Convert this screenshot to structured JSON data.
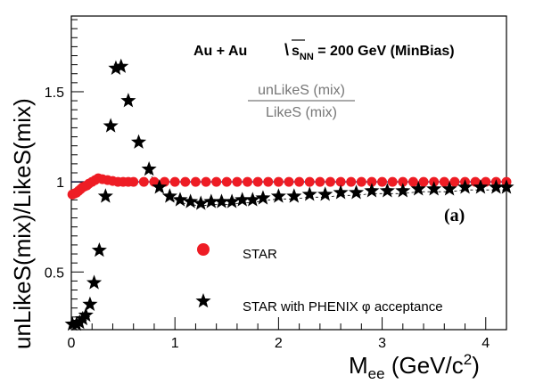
{
  "chart_data": {
    "type": "scatter",
    "title": "Au + Au",
    "energy_label": "s",
    "energy_sub": "NN",
    "energy_value": " = 200 GeV (MinBias)",
    "ratio_numerator": "unLikeS (mix)",
    "ratio_denominator": "LikeS (mix)",
    "panel_label": "(a)",
    "xlabel": "M",
    "xlabel_sub": "ee",
    "xlabel_unit": " (GeV/c",
    "xlabel_sup": "2",
    "xlabel_close": ")",
    "ylabel": "unLikeS(mix)/LikeS(mix)",
    "xlim": [
      0,
      4.2
    ],
    "ylim": [
      0.18,
      1.92
    ],
    "x_ticks": [
      0,
      1,
      2,
      3,
      4
    ],
    "x_tick_labels": [
      "0",
      "1",
      "2",
      "3",
      "4"
    ],
    "y_ticks": [
      0.5,
      1,
      1.5
    ],
    "y_tick_labels": [
      "0.5",
      "1",
      "1.5"
    ],
    "reference_line": 1.0,
    "legend_position": "bottom-center",
    "series": [
      {
        "name": "STAR",
        "marker": "circle",
        "color": "#ee1c24",
        "x": [
          0.01,
          0.03,
          0.05,
          0.07,
          0.09,
          0.11,
          0.13,
          0.15,
          0.17,
          0.2,
          0.23,
          0.26,
          0.3,
          0.35,
          0.4,
          0.45,
          0.5,
          0.55,
          0.6,
          0.7,
          0.8,
          0.9,
          1.0,
          1.1,
          1.2,
          1.3,
          1.4,
          1.5,
          1.6,
          1.7,
          1.8,
          1.9,
          2.0,
          2.1,
          2.2,
          2.3,
          2.4,
          2.5,
          2.6,
          2.7,
          2.8,
          2.9,
          3.0,
          3.1,
          3.2,
          3.3,
          3.4,
          3.5,
          3.6,
          3.7,
          3.8,
          3.9,
          4.0,
          4.1,
          4.2
        ],
        "y": [
          0.93,
          0.935,
          0.94,
          0.95,
          0.96,
          0.97,
          0.975,
          0.98,
          0.99,
          1.0,
          1.01,
          1.02,
          1.015,
          1.01,
          1.005,
          1.0,
          1.0,
          1.0,
          1.0,
          1.0,
          1.0,
          1.0,
          1.0,
          1.0,
          1.0,
          1.0,
          1.0,
          1.0,
          1.0,
          1.0,
          1.0,
          1.0,
          1.0,
          1.0,
          1.0,
          1.0,
          1.0,
          1.0,
          1.0,
          1.0,
          1.0,
          1.0,
          1.0,
          1.0,
          1.0,
          1.0,
          1.0,
          1.0,
          1.0,
          1.0,
          1.0,
          1.0,
          1.0,
          1.0,
          1.0
        ]
      },
      {
        "name": "STAR with PHENIX",
        "name_symbol": "φ",
        "name_suffix": "acceptance",
        "marker": "star",
        "color": "#000000",
        "x": [
          0.01,
          0.05,
          0.08,
          0.11,
          0.14,
          0.18,
          0.22,
          0.27,
          0.33,
          0.38,
          0.43,
          0.48,
          0.55,
          0.65,
          0.75,
          0.85,
          0.95,
          1.05,
          1.15,
          1.25,
          1.35,
          1.45,
          1.55,
          1.65,
          1.75,
          1.85,
          2.0,
          2.15,
          2.3,
          2.45,
          2.6,
          2.75,
          2.9,
          3.05,
          3.2,
          3.35,
          3.5,
          3.65,
          3.8,
          3.95,
          4.1,
          4.2
        ],
        "y": [
          0.21,
          0.21,
          0.22,
          0.24,
          0.26,
          0.32,
          0.44,
          0.62,
          0.92,
          1.31,
          1.63,
          1.64,
          1.45,
          1.22,
          1.07,
          0.97,
          0.92,
          0.9,
          0.89,
          0.88,
          0.89,
          0.89,
          0.89,
          0.9,
          0.9,
          0.91,
          0.92,
          0.92,
          0.93,
          0.93,
          0.94,
          0.94,
          0.95,
          0.95,
          0.95,
          0.96,
          0.96,
          0.96,
          0.97,
          0.97,
          0.97,
          0.97
        ]
      }
    ]
  }
}
